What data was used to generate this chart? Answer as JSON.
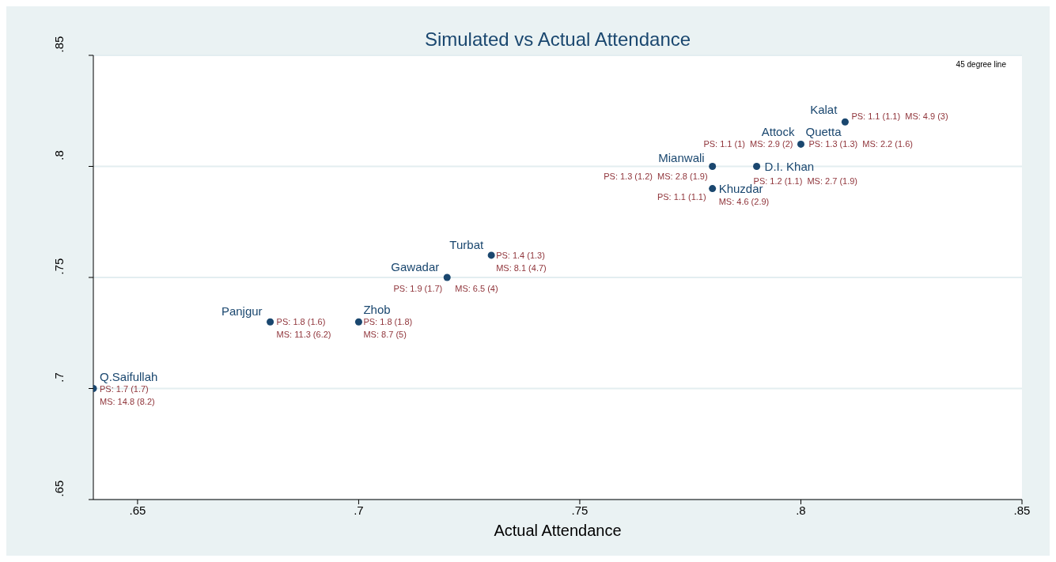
{
  "chart_data": {
    "type": "scatter",
    "title": "Simulated vs Actual Attendance",
    "xlabel": "Actual Attendance",
    "x": [
      0.64,
      0.68,
      0.7,
      0.72,
      0.73,
      0.78,
      0.79,
      0.78,
      0.8,
      0.81
    ],
    "values": [
      0.7,
      0.73,
      0.73,
      0.75,
      0.76,
      0.8,
      0.8,
      0.79,
      0.81,
      0.82
    ],
    "color": "#1a476f",
    "marker": "circle",
    "xlim": [
      0.64,
      0.85
    ],
    "xticks": [
      {
        "value": 0.65,
        "label": ".65"
      },
      {
        "value": 0.7,
        "label": ".7"
      },
      {
        "value": 0.75,
        "label": ".75"
      },
      {
        "value": 0.8,
        "label": ".8"
      },
      {
        "value": 0.85,
        "label": ".85"
      }
    ],
    "ylim": [
      0.65,
      0.85
    ],
    "yticks": [
      {
        "value": 0.65,
        "label": ".65"
      },
      {
        "value": 0.7,
        "label": ".7"
      },
      {
        "value": 0.75,
        "label": ".75"
      },
      {
        "value": 0.8,
        "label": ".8"
      },
      {
        "value": 0.85,
        "label": ".85"
      }
    ],
    "grid": "y",
    "legend": false,
    "annotations": [
      "45 degree line",
      {
        "text": "Q.Saifullah",
        "x": 0.64,
        "y": 0.7
      },
      {
        "text": "PS: 1.7 (1.7)",
        "x": 0.64,
        "y": 0.7
      },
      {
        "text": "MS: 14.8 (8.2)",
        "x": 0.64,
        "y": 0.7
      },
      {
        "text": "Panjgur",
        "x": 0.68,
        "y": 0.73
      },
      {
        "text": "PS: 1.8 (1.6)",
        "x": 0.68,
        "y": 0.73
      },
      {
        "text": "MS: 11.3 (6.2)",
        "x": 0.68,
        "y": 0.73
      },
      {
        "text": "Zhob",
        "x": 0.7,
        "y": 0.73
      },
      {
        "text": "PS: 1.8 (1.8)",
        "x": 0.7,
        "y": 0.73
      },
      {
        "text": "MS: 8.7 (5)",
        "x": 0.7,
        "y": 0.73
      },
      {
        "text": "Gawadar",
        "x": 0.72,
        "y": 0.75
      },
      {
        "text": "PS: 1.9 (1.7)",
        "x": 0.72,
        "y": 0.75
      },
      {
        "text": "MS: 6.5 (4)",
        "x": 0.72,
        "y": 0.75
      },
      {
        "text": "Turbat",
        "x": 0.73,
        "y": 0.76
      },
      {
        "text": "PS: 1.4 (1.3)",
        "x": 0.73,
        "y": 0.76
      },
      {
        "text": "MS: 8.1 (4.7)",
        "x": 0.73,
        "y": 0.76
      },
      {
        "text": "Mianwali",
        "x": 0.78,
        "y": 0.8
      },
      {
        "text": "PS: 1.3 (1.2)  MS: 2.8 (1.9)",
        "x": 0.78,
        "y": 0.8
      },
      {
        "text": "D.I. Khan",
        "x": 0.79,
        "y": 0.8
      },
      {
        "text": "PS: 1.2 (1.1)  MS: 2.7 (1.9)",
        "x": 0.79,
        "y": 0.8
      },
      {
        "text": "Khuzdar",
        "x": 0.78,
        "y": 0.79
      },
      {
        "text": "PS: 1.1 (1.1)",
        "x": 0.78,
        "y": 0.79
      },
      {
        "text": "MS: 4.6 (2.9)",
        "x": 0.78,
        "y": 0.79
      },
      {
        "text": "Attock",
        "x": 0.8,
        "y": 0.81
      },
      {
        "text": "PS: 1.1 (1)  MS: 2.9 (2)",
        "x": 0.8,
        "y": 0.81
      },
      {
        "text": "Quetta",
        "x": 0.8,
        "y": 0.81
      },
      {
        "text": "PS: 1.3 (1.3)  MS: 2.2 (1.6)",
        "x": 0.8,
        "y": 0.81
      },
      {
        "text": "Kalat",
        "x": 0.81,
        "y": 0.82
      },
      {
        "text": "PS: 1.1 (1.1)  MS: 4.9 (3)",
        "x": 0.81,
        "y": 0.82
      }
    ]
  }
}
